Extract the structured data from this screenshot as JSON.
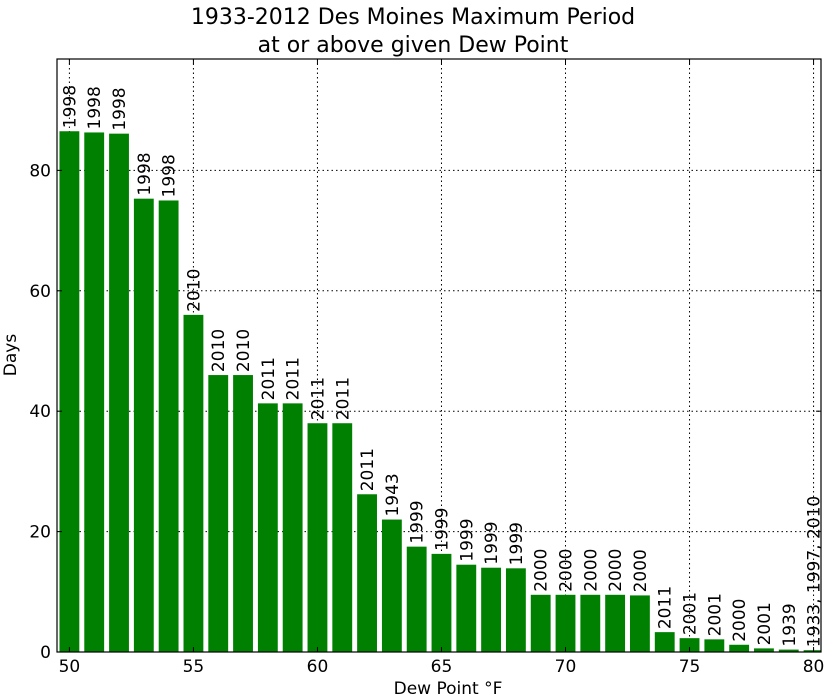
{
  "chart_data": {
    "type": "bar",
    "title_line1": "1933-2012 Des Moines Maximum Period",
    "title_line2": "at or above given Dew Point",
    "xlabel": "Dew Point $^\\circ$F",
    "xlabel_display": "Dew Point °F",
    "ylabel": "Days",
    "xlim": [
      50,
      80
    ],
    "ylim": [
      0,
      100
    ],
    "xticks": [
      50,
      55,
      60,
      65,
      70,
      75,
      80
    ],
    "yticks": [
      0,
      20,
      40,
      60,
      80
    ],
    "grid": true,
    "bar_color": "#008000",
    "x": [
      50,
      51,
      52,
      53,
      54,
      55,
      56,
      57,
      58,
      59,
      60,
      61,
      62,
      63,
      64,
      65,
      66,
      67,
      68,
      69,
      70,
      71,
      72,
      73,
      74,
      75,
      76,
      77,
      78,
      79,
      80
    ],
    "values": [
      86.5,
      86.3,
      86.1,
      75.3,
      75.0,
      56.0,
      46.0,
      46.0,
      41.3,
      41.3,
      38.0,
      38.0,
      26.2,
      22.0,
      17.5,
      16.3,
      14.5,
      14.0,
      13.9,
      9.5,
      9.5,
      9.5,
      9.5,
      9.4,
      3.3,
      2.3,
      2.1,
      1.2,
      0.6,
      0.4,
      0.3
    ],
    "labels": [
      "1998",
      "1998",
      "1998",
      "1998",
      "1998",
      "2010",
      "2010",
      "2010",
      "2011",
      "2011",
      "2011",
      "2011",
      "2011",
      "1943",
      "1999",
      "1999",
      "1999",
      "1999",
      "1999",
      "2000",
      "2000",
      "2000",
      "2000",
      "2000",
      "2011",
      "2001",
      "2001",
      "2000",
      "2001",
      "1939",
      "1933, 1997, 2010"
    ]
  }
}
